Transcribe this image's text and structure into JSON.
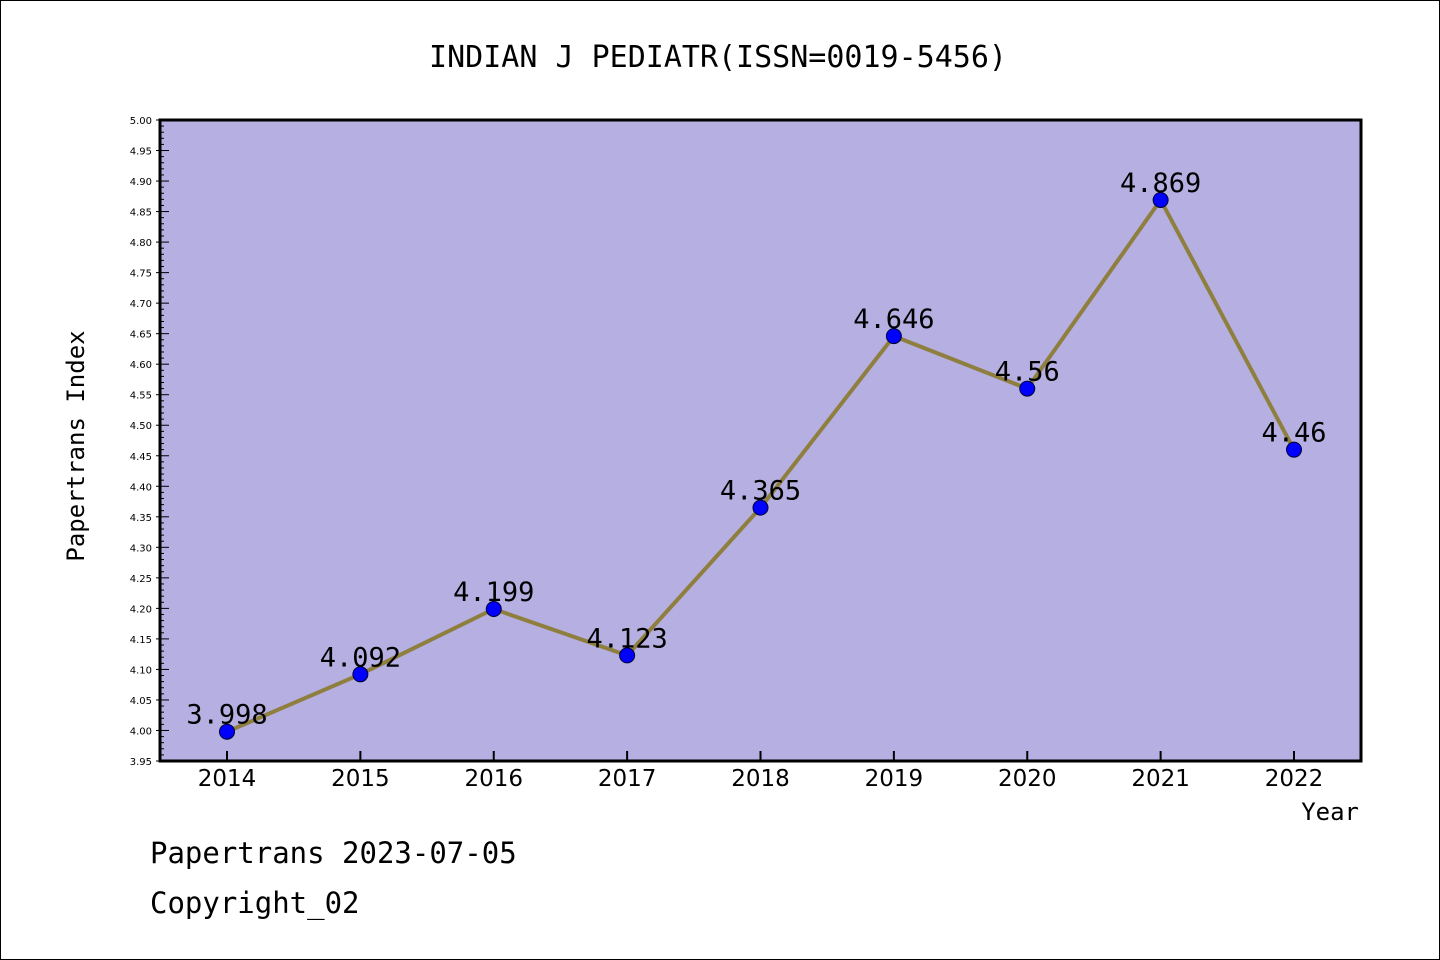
{
  "chart_data": {
    "type": "line",
    "title": "INDIAN J PEDIATR(ISSN=0019-5456)",
    "xlabel": "Year",
    "ylabel": "Papertrans Index",
    "categories": [
      "2014",
      "2015",
      "2016",
      "2017",
      "2018",
      "2019",
      "2020",
      "2021",
      "2022"
    ],
    "values": [
      3.998,
      4.092,
      4.199,
      4.123,
      4.365,
      4.646,
      4.56,
      4.869,
      4.46
    ],
    "data_labels": [
      "3.998",
      "4.092",
      "4.199",
      "4.123",
      "4.365",
      "4.646",
      "4.56",
      "4.869",
      "4.46"
    ],
    "ylim": [
      3.95,
      5.0
    ],
    "y_ticks": [
      "3.95",
      "4.00",
      "4.05",
      "4.10",
      "4.15",
      "4.20",
      "4.25",
      "4.30",
      "4.35",
      "4.40",
      "4.45",
      "4.50",
      "4.55",
      "4.60",
      "4.65",
      "4.70",
      "4.75",
      "4.80",
      "4.85",
      "4.90",
      "4.95",
      "5.00"
    ],
    "grid": false,
    "colors": {
      "plot_background": "#b5afe2",
      "line": "#8f7f3f",
      "marker": "#0000ff",
      "axes": "#000000"
    }
  },
  "footer": {
    "source": "Papertrans 2023-07-05",
    "copyright": "Copyright_02"
  }
}
